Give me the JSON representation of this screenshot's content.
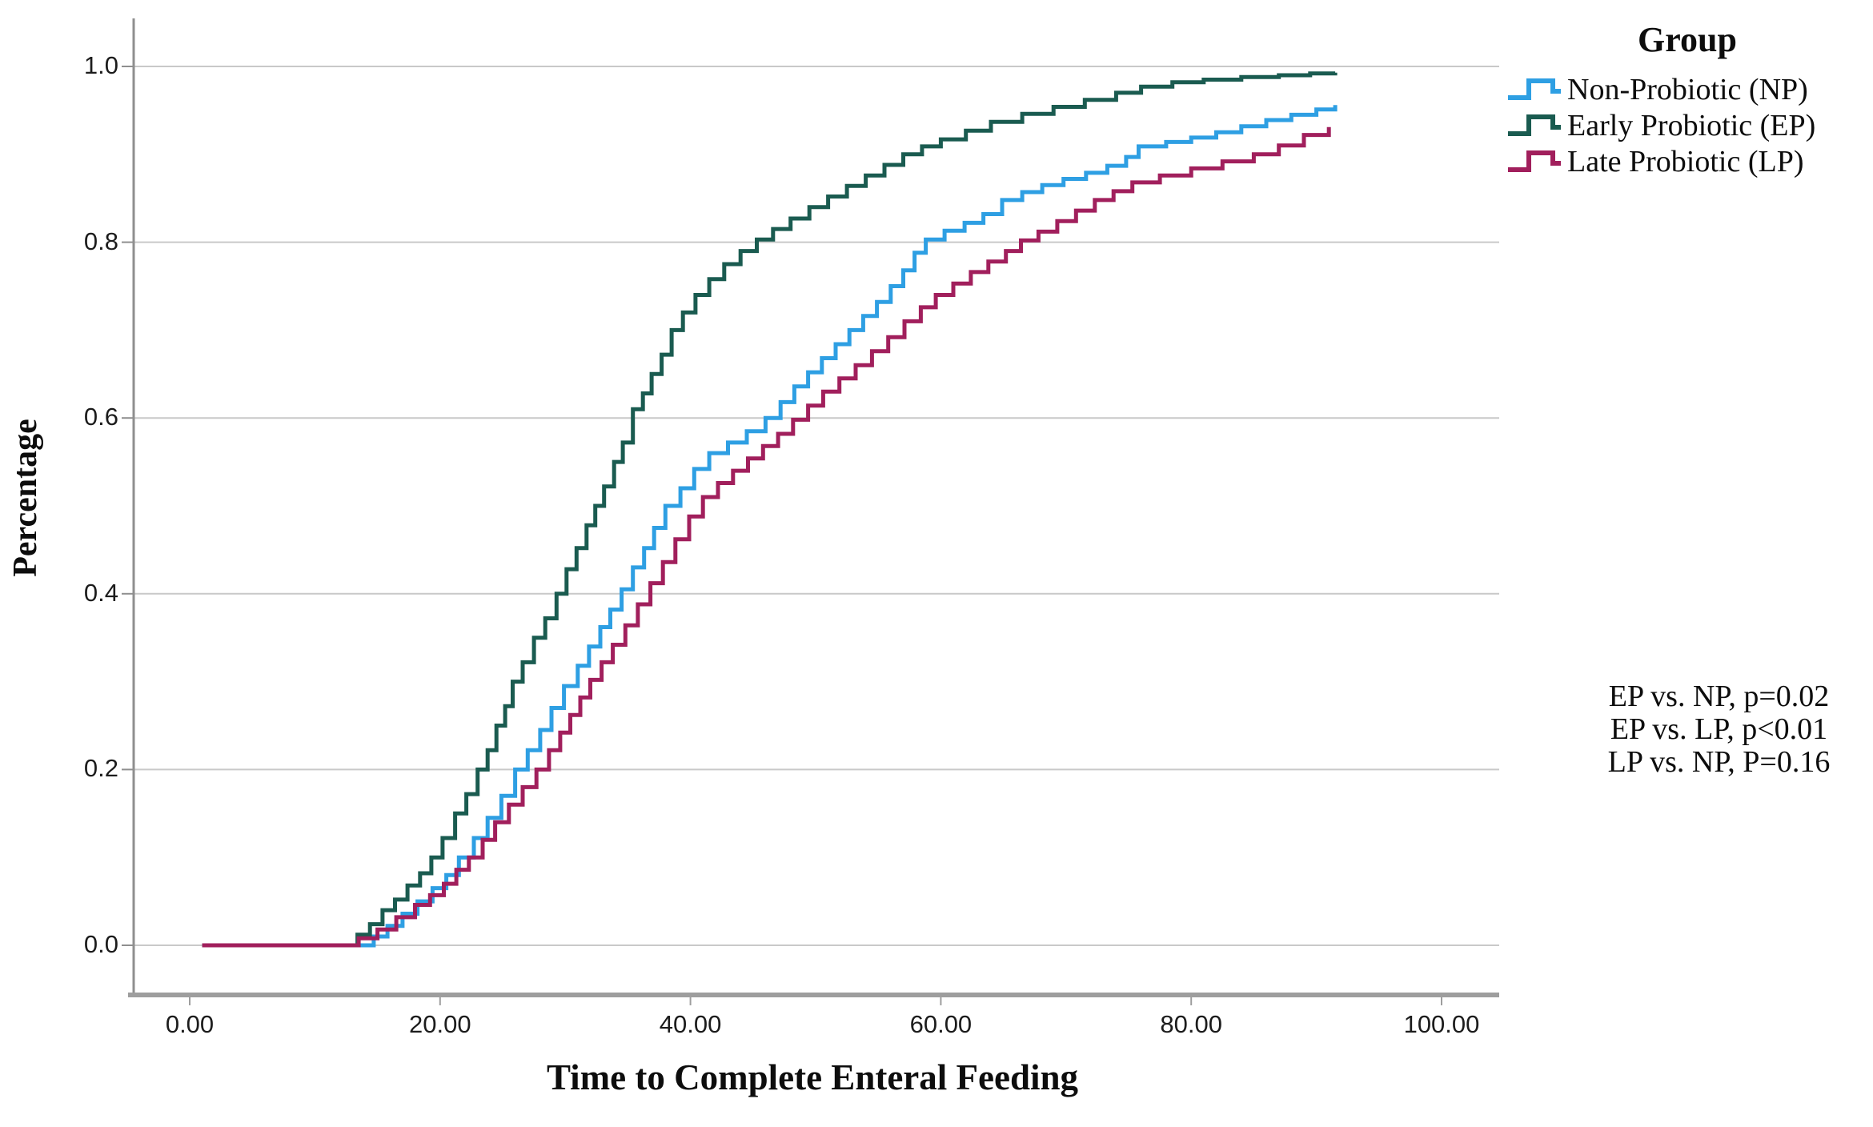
{
  "figure": {
    "x_axis": {
      "title": "Time to Complete Enteral Feeding",
      "tick_labels": [
        "0.00",
        "20.00",
        "40.00",
        "60.00",
        "80.00",
        "100.00"
      ],
      "tick_values": [
        0,
        20,
        40,
        60,
        80,
        100
      ]
    },
    "y_axis": {
      "title": "Percentage",
      "tick_labels": [
        "0.0",
        "0.2",
        "0.4",
        "0.6",
        "0.8",
        "1.0"
      ],
      "tick_values": [
        0,
        0.2,
        0.4,
        0.6,
        0.8,
        1.0
      ]
    },
    "legend": {
      "title": "Group",
      "entries": [
        {
          "label": "Non-Probiotic (NP)",
          "color": "#2E9FE3"
        },
        {
          "label": "Early Probiotic (EP)",
          "color": "#1A5B50"
        },
        {
          "label": "Late Probiotic (LP)",
          "color": "#A11F5C"
        }
      ]
    },
    "annotations": [
      "EP vs. NP, p=0.02",
      "EP vs. LP, p<0.01",
      "LP vs. NP, P=0.16"
    ],
    "colors": {
      "gridline": "#C9C9C9",
      "axis": "#8F8F8F",
      "bottom_axis": "#9E9E9E"
    }
  },
  "chart_data": {
    "type": "line",
    "subtype": "step-cumulative-incidence",
    "title": "",
    "xlabel": "Time to Complete Enteral Feeding",
    "ylabel": "Percentage",
    "xlim": [
      -4.5,
      104.5
    ],
    "ylim": [
      -0.057,
      1.055
    ],
    "grid": true,
    "legend_position": "top-right",
    "series": [
      {
        "name": "Non-Probiotic (NP)",
        "color": "#2E9FE3",
        "points": [
          [
            1,
            0
          ],
          [
            14.7,
            0.01
          ],
          [
            15.8,
            0.022
          ],
          [
            17,
            0.036
          ],
          [
            18.2,
            0.05
          ],
          [
            19.4,
            0.065
          ],
          [
            20.5,
            0.08
          ],
          [
            21.5,
            0.1
          ],
          [
            22.7,
            0.122
          ],
          [
            23.8,
            0.145
          ],
          [
            24.9,
            0.17
          ],
          [
            26,
            0.2
          ],
          [
            27,
            0.222
          ],
          [
            28,
            0.245
          ],
          [
            28.9,
            0.27
          ],
          [
            29.9,
            0.295
          ],
          [
            31,
            0.318
          ],
          [
            31.9,
            0.34
          ],
          [
            32.8,
            0.362
          ],
          [
            33.6,
            0.382
          ],
          [
            34.5,
            0.405
          ],
          [
            35.4,
            0.43
          ],
          [
            36.3,
            0.452
          ],
          [
            37.1,
            0.475
          ],
          [
            38,
            0.5
          ],
          [
            39.2,
            0.52
          ],
          [
            40.3,
            0.542
          ],
          [
            41.5,
            0.56
          ],
          [
            43,
            0.572
          ],
          [
            44.5,
            0.585
          ],
          [
            46,
            0.6
          ],
          [
            47.2,
            0.618
          ],
          [
            48.3,
            0.636
          ],
          [
            49.4,
            0.652
          ],
          [
            50.5,
            0.668
          ],
          [
            51.6,
            0.684
          ],
          [
            52.7,
            0.7
          ],
          [
            53.8,
            0.716
          ],
          [
            54.9,
            0.732
          ],
          [
            56,
            0.75
          ],
          [
            57,
            0.768
          ],
          [
            57.9,
            0.788
          ],
          [
            58.8,
            0.803
          ],
          [
            60.3,
            0.813
          ],
          [
            61.9,
            0.822
          ],
          [
            63.4,
            0.832
          ],
          [
            64.9,
            0.848
          ],
          [
            66.5,
            0.857
          ],
          [
            68.1,
            0.865
          ],
          [
            69.8,
            0.872
          ],
          [
            71.6,
            0.879
          ],
          [
            73.3,
            0.887
          ],
          [
            74.8,
            0.897
          ],
          [
            75.8,
            0.909
          ],
          [
            78,
            0.914
          ],
          [
            80,
            0.919
          ],
          [
            82,
            0.925
          ],
          [
            84,
            0.932
          ],
          [
            86,
            0.939
          ],
          [
            88,
            0.945
          ],
          [
            90,
            0.951
          ],
          [
            91.5,
            0.956
          ]
        ]
      },
      {
        "name": "Early Probiotic (EP)",
        "color": "#1A5B50",
        "points": [
          [
            1,
            0
          ],
          [
            13.4,
            0.012
          ],
          [
            14.4,
            0.024
          ],
          [
            15.4,
            0.04
          ],
          [
            16.4,
            0.052
          ],
          [
            17.4,
            0.068
          ],
          [
            18.4,
            0.082
          ],
          [
            19.3,
            0.1
          ],
          [
            20.2,
            0.122
          ],
          [
            21.2,
            0.15
          ],
          [
            22.1,
            0.172
          ],
          [
            23,
            0.2
          ],
          [
            23.8,
            0.222
          ],
          [
            24.5,
            0.25
          ],
          [
            25.2,
            0.272
          ],
          [
            25.8,
            0.3
          ],
          [
            26.6,
            0.322
          ],
          [
            27.5,
            0.35
          ],
          [
            28.4,
            0.372
          ],
          [
            29.3,
            0.4
          ],
          [
            30.1,
            0.428
          ],
          [
            30.9,
            0.452
          ],
          [
            31.7,
            0.478
          ],
          [
            32.4,
            0.5
          ],
          [
            33.1,
            0.522
          ],
          [
            33.9,
            0.55
          ],
          [
            34.6,
            0.572
          ],
          [
            35.4,
            0.61
          ],
          [
            36.2,
            0.628
          ],
          [
            36.9,
            0.65
          ],
          [
            37.7,
            0.672
          ],
          [
            38.5,
            0.7
          ],
          [
            39.4,
            0.72
          ],
          [
            40.4,
            0.74
          ],
          [
            41.5,
            0.758
          ],
          [
            42.7,
            0.775
          ],
          [
            44,
            0.79
          ],
          [
            45.3,
            0.803
          ],
          [
            46.6,
            0.815
          ],
          [
            48,
            0.827
          ],
          [
            49.5,
            0.84
          ],
          [
            51,
            0.852
          ],
          [
            52.5,
            0.864
          ],
          [
            54,
            0.876
          ],
          [
            55.5,
            0.888
          ],
          [
            57,
            0.9
          ],
          [
            58.5,
            0.909
          ],
          [
            60,
            0.917
          ],
          [
            62,
            0.927
          ],
          [
            64,
            0.937
          ],
          [
            66.5,
            0.946
          ],
          [
            69,
            0.954
          ],
          [
            71.5,
            0.962
          ],
          [
            74,
            0.97
          ],
          [
            76,
            0.977
          ],
          [
            78.5,
            0.982
          ],
          [
            81,
            0.985
          ],
          [
            84,
            0.988
          ],
          [
            87,
            0.99
          ],
          [
            89.5,
            0.992
          ],
          [
            91.5,
            0.993
          ]
        ]
      },
      {
        "name": "Late Probiotic (LP)",
        "color": "#A11F5C",
        "points": [
          [
            1,
            0
          ],
          [
            13.5,
            0.008
          ],
          [
            15,
            0.018
          ],
          [
            16.5,
            0.032
          ],
          [
            18,
            0.046
          ],
          [
            19.2,
            0.057
          ],
          [
            20.3,
            0.07
          ],
          [
            21.3,
            0.086
          ],
          [
            22.3,
            0.1
          ],
          [
            23.4,
            0.12
          ],
          [
            24.4,
            0.14
          ],
          [
            25.5,
            0.16
          ],
          [
            26.6,
            0.18
          ],
          [
            27.7,
            0.2
          ],
          [
            28.7,
            0.222
          ],
          [
            29.6,
            0.242
          ],
          [
            30.4,
            0.262
          ],
          [
            31.2,
            0.282
          ],
          [
            32,
            0.302
          ],
          [
            32.9,
            0.322
          ],
          [
            33.8,
            0.342
          ],
          [
            34.8,
            0.364
          ],
          [
            35.8,
            0.388
          ],
          [
            36.8,
            0.412
          ],
          [
            37.8,
            0.436
          ],
          [
            38.8,
            0.462
          ],
          [
            39.9,
            0.488
          ],
          [
            41,
            0.51
          ],
          [
            42.2,
            0.526
          ],
          [
            43.4,
            0.54
          ],
          [
            44.6,
            0.554
          ],
          [
            45.8,
            0.568
          ],
          [
            47,
            0.582
          ],
          [
            48.2,
            0.598
          ],
          [
            49.4,
            0.614
          ],
          [
            50.6,
            0.63
          ],
          [
            51.9,
            0.645
          ],
          [
            53.2,
            0.66
          ],
          [
            54.5,
            0.676
          ],
          [
            55.8,
            0.692
          ],
          [
            57.1,
            0.71
          ],
          [
            58.4,
            0.726
          ],
          [
            59.6,
            0.74
          ],
          [
            61,
            0.753
          ],
          [
            62.4,
            0.766
          ],
          [
            63.8,
            0.778
          ],
          [
            65.2,
            0.79
          ],
          [
            66.4,
            0.802
          ],
          [
            67.8,
            0.812
          ],
          [
            69.3,
            0.824
          ],
          [
            70.8,
            0.836
          ],
          [
            72.3,
            0.848
          ],
          [
            73.8,
            0.858
          ],
          [
            75.3,
            0.868
          ],
          [
            77.5,
            0.876
          ],
          [
            80,
            0.884
          ],
          [
            82.5,
            0.892
          ],
          [
            85,
            0.9
          ],
          [
            87,
            0.91
          ],
          [
            89,
            0.922
          ],
          [
            91,
            0.931
          ]
        ]
      }
    ],
    "annotations": [
      "EP vs. NP, p=0.02",
      "EP vs. LP, p<0.01",
      "LP vs. NP, P=0.16"
    ]
  }
}
